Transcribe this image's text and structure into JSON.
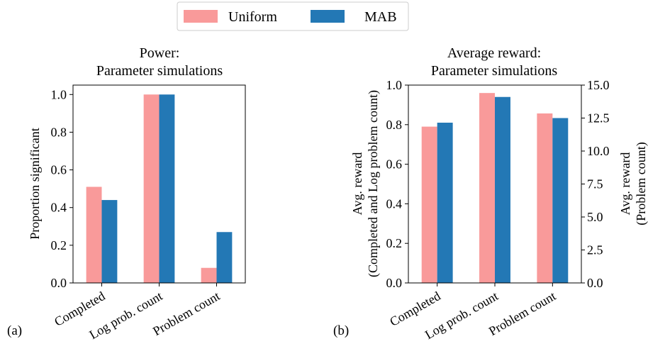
{
  "legend": {
    "items": [
      {
        "label": "Uniform",
        "color": "#f99a9a"
      },
      {
        "label": "MAB",
        "color": "#2378b5"
      }
    ]
  },
  "panels": {
    "a": {
      "label": "(a)"
    },
    "b": {
      "label": "(b)"
    }
  },
  "chart_data": [
    {
      "type": "bar",
      "title_line1": "Power:",
      "title_line2": "Parameter simulations",
      "xlabel": "",
      "ylabel": "Proportion significant",
      "ylim": [
        0,
        1.05
      ],
      "yticks": [
        "0.0",
        "0.2",
        "0.4",
        "0.6",
        "0.8",
        "1.0"
      ],
      "categories": [
        "Completed",
        "Log prob. count",
        "Problem count"
      ],
      "series": [
        {
          "name": "Uniform",
          "values": [
            0.51,
            1.0,
            0.08
          ]
        },
        {
          "name": "MAB",
          "values": [
            0.44,
            1.0,
            0.27
          ]
        }
      ],
      "grid": false
    },
    {
      "type": "bar",
      "title_line1": "Average reward:",
      "title_line2": "Parameter simulations",
      "xlabel": "",
      "ylabel_line1": "Avg. reward",
      "ylabel_line2": "(Completed and Log problem count)",
      "ylabel_right_line1": "Avg. reward",
      "ylabel_right_line2": "(Problem count)",
      "ylim": [
        0,
        1.0
      ],
      "yticks": [
        "0.0",
        "0.2",
        "0.4",
        "0.6",
        "0.8",
        "1.0"
      ],
      "ylim_right": [
        0,
        15.0
      ],
      "yticks_right": [
        "0.0",
        "2.5",
        "5.0",
        "7.5",
        "10.0",
        "12.5",
        "15.0"
      ],
      "categories": [
        "Completed",
        "Log prob. count",
        "Problem count"
      ],
      "series": [
        {
          "name": "Uniform",
          "values": [
            0.79,
            0.96,
            12.85
          ]
        },
        {
          "name": "MAB",
          "values": [
            0.81,
            0.94,
            12.5
          ]
        }
      ],
      "grid": false
    }
  ]
}
